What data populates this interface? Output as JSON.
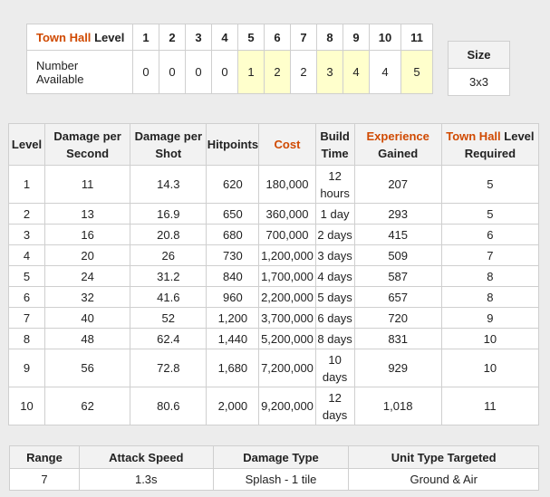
{
  "availability": {
    "town_hall_label": "Town Hall",
    "level_label": "Level",
    "levels": [
      "1",
      "2",
      "3",
      "4",
      "5",
      "6",
      "7",
      "8",
      "9",
      "10",
      "11"
    ],
    "number_label_line1": "Number",
    "number_label_line2": "Available",
    "counts": [
      "0",
      "0",
      "0",
      "0",
      "1",
      "2",
      "2",
      "3",
      "4",
      "4",
      "5"
    ],
    "highlight_color": "#ffffcc"
  },
  "size": {
    "label": "Size",
    "value": "3x3"
  },
  "level_table": {
    "headers": {
      "level": "Level",
      "dps_line1": "Damage per",
      "dps_line2": "Second",
      "dmg_shot_line1": "Damage per",
      "dmg_shot_line2": "Shot",
      "hitpoints": "Hitpoints",
      "cost": "Cost",
      "build_line1": "Build",
      "build_line2": "Time",
      "exp_line1": "Experience",
      "exp_line2": "Gained",
      "th_req_orange": "Town Hall",
      "th_req_level": "Level",
      "th_req_line2": "Required"
    },
    "accent_color": "#d04a02",
    "rows": [
      {
        "level": "1",
        "dps": "11",
        "shot": "14.3",
        "hp": "620",
        "cost": "180,000",
        "build": [
          "12",
          "hours"
        ],
        "exp": "207",
        "th": "5"
      },
      {
        "level": "2",
        "dps": "13",
        "shot": "16.9",
        "hp": "650",
        "cost": "360,000",
        "build": [
          "1 day"
        ],
        "exp": "293",
        "th": "5"
      },
      {
        "level": "3",
        "dps": "16",
        "shot": "20.8",
        "hp": "680",
        "cost": "700,000",
        "build": [
          "2 days"
        ],
        "exp": "415",
        "th": "6"
      },
      {
        "level": "4",
        "dps": "20",
        "shot": "26",
        "hp": "730",
        "cost": "1,200,000",
        "build": [
          "3 days"
        ],
        "exp": "509",
        "th": "7"
      },
      {
        "level": "5",
        "dps": "24",
        "shot": "31.2",
        "hp": "840",
        "cost": "1,700,000",
        "build": [
          "4 days"
        ],
        "exp": "587",
        "th": "8"
      },
      {
        "level": "6",
        "dps": "32",
        "shot": "41.6",
        "hp": "960",
        "cost": "2,200,000",
        "build": [
          "5 days"
        ],
        "exp": "657",
        "th": "8"
      },
      {
        "level": "7",
        "dps": "40",
        "shot": "52",
        "hp": "1,200",
        "cost": "3,700,000",
        "build": [
          "6 days"
        ],
        "exp": "720",
        "th": "9"
      },
      {
        "level": "8",
        "dps": "48",
        "shot": "62.4",
        "hp": "1,440",
        "cost": "5,200,000",
        "build": [
          "8 days"
        ],
        "exp": "831",
        "th": "10"
      },
      {
        "level": "9",
        "dps": "56",
        "shot": "72.8",
        "hp": "1,680",
        "cost": "7,200,000",
        "build": [
          "10",
          "days"
        ],
        "exp": "929",
        "th": "10"
      },
      {
        "level": "10",
        "dps": "62",
        "shot": "80.6",
        "hp": "2,000",
        "cost": "9,200,000",
        "build": [
          "12",
          "days"
        ],
        "exp": "1,018",
        "th": "11"
      }
    ]
  },
  "stats": {
    "headers": [
      "Range",
      "Attack Speed",
      "Damage Type",
      "Unit Type Targeted"
    ],
    "values": [
      "7",
      "1.3s",
      "Splash - 1 tile",
      "Ground & Air"
    ]
  }
}
